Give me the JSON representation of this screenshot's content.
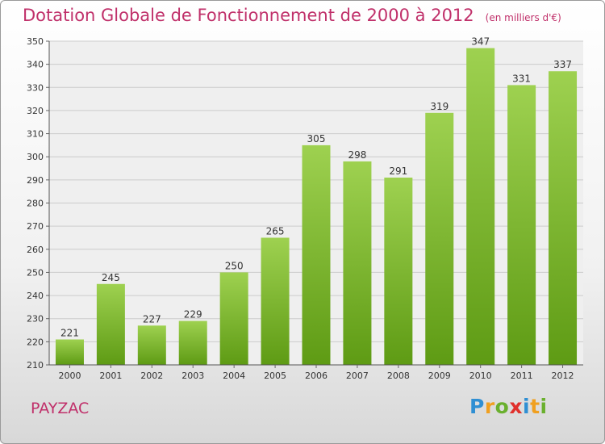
{
  "title": "Dotation Globale de Fonctionnement de 2000 à 2012",
  "unit_note": "(en milliers d'€)",
  "commune": "PAYZAC",
  "logo": {
    "text": "Proxiti",
    "letters": [
      {
        "char": "P",
        "color": "#2f8fd3"
      },
      {
        "char": "r",
        "color": "#f0a020"
      },
      {
        "char": "o",
        "color": "#6ab02e"
      },
      {
        "char": "x",
        "color": "#e0302c"
      },
      {
        "char": "i",
        "color": "#2f8fd3"
      },
      {
        "char": "t",
        "color": "#f0a020"
      },
      {
        "char": "i",
        "color": "#6ab02e"
      }
    ]
  },
  "colors": {
    "title": "#c0306a",
    "bar_light": "#9ed150",
    "bar_dark": "#5e9b14",
    "grid": "#cccccc",
    "plot_bg": "#efefef"
  },
  "chart_data": {
    "type": "bar",
    "categories": [
      "2000",
      "2001",
      "2002",
      "2003",
      "2004",
      "2005",
      "2006",
      "2007",
      "2008",
      "2009",
      "2010",
      "2011",
      "2012"
    ],
    "values": [
      221,
      245,
      227,
      229,
      250,
      265,
      305,
      298,
      291,
      319,
      347,
      331,
      337
    ],
    "title": "Dotation Globale de Fonctionnement de 2000 à 2012",
    "xlabel": "",
    "ylabel": "",
    "ylim": [
      210,
      350
    ],
    "yticks": [
      210,
      220,
      230,
      240,
      250,
      260,
      270,
      280,
      290,
      300,
      310,
      320,
      330,
      340,
      350
    ],
    "grid": true,
    "legend": "none"
  }
}
